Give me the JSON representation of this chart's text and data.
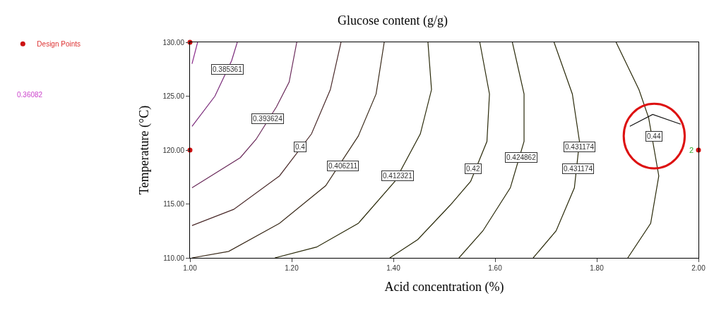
{
  "chart_data": {
    "type": "line",
    "title": "Glucose content (g/g)",
    "xlabel": "Acid concentration (%)",
    "ylabel": "Temperature (°C)",
    "xlim": [
      1,
      2
    ],
    "ylim": [
      110,
      130
    ],
    "xticks": [
      {
        "value": 1,
        "label": "1.00"
      },
      {
        "value": 1.2,
        "label": "1.20"
      },
      {
        "value": 1.4,
        "label": "1.40"
      },
      {
        "value": 1.6,
        "label": "1.60"
      },
      {
        "value": 1.8,
        "label": "1.80"
      },
      {
        "value": 2,
        "label": "2.00"
      }
    ],
    "yticks": [
      {
        "value": 110,
        "label": "110.00"
      },
      {
        "value": 115,
        "label": "115.00"
      },
      {
        "value": 120,
        "label": "120.00"
      },
      {
        "value": 125,
        "label": "125.00"
      },
      {
        "value": 130,
        "label": "130.00"
      }
    ],
    "grid": false,
    "legend": "top left",
    "marker": "none",
    "line_style": "solid",
    "series": [
      {
        "color": "#8a2a8a",
        "x": [
          1.015,
          1.004
        ],
        "values": [
          130,
          128.0
        ]
      },
      {
        "color": "#7a2a7a",
        "x": [
          1.093,
          1.082,
          1.049,
          1.004
        ],
        "values": [
          130,
          128.3,
          125.0,
          122.2
        ]
      },
      {
        "color": "#6a2a5a",
        "x": [
          1.21,
          1.195,
          1.17,
          1.13,
          1.099,
          1.004
        ],
        "values": [
          130,
          126.3,
          124.0,
          121.0,
          119.3,
          116.5
        ]
      },
      {
        "color": "#4a2a2a",
        "x": [
          1.297,
          1.276,
          1.239,
          1.176,
          1.086,
          1.004
        ],
        "values": [
          130,
          125.6,
          121.5,
          117.6,
          114.5,
          113.0
        ]
      },
      {
        "color": "#3a2a1a",
        "x": [
          1.382,
          1.366,
          1.331,
          1.267,
          1.176,
          1.076,
          1.004
        ],
        "values": [
          130,
          125.2,
          121.3,
          116.7,
          113.2,
          110.6,
          110
        ]
      },
      {
        "color": "#2a2a0a",
        "x": [
          1.468,
          1.475,
          1.453,
          1.403,
          1.331,
          1.249,
          1.167
        ],
        "values": [
          130,
          125.6,
          121.5,
          117.1,
          113.2,
          111.0,
          110
        ]
      },
      {
        "color": "#2a2a0a",
        "x": [
          1.57,
          1.589,
          1.584,
          1.552,
          1.512,
          1.448,
          1.393
        ],
        "values": [
          130,
          125.2,
          120.8,
          117.1,
          114.9,
          111.7,
          110
        ]
      },
      {
        "color": "#2a2a0a",
        "x": [
          1.634,
          1.657,
          1.657,
          1.63,
          1.576,
          1.529
        ],
        "values": [
          130,
          125.2,
          120.8,
          116.5,
          112.5,
          110
        ]
      },
      {
        "color": "#2a2a0a",
        "x": [
          1.716,
          1.752,
          1.766,
          1.756,
          1.72,
          1.675
        ],
        "values": [
          130,
          125.2,
          120.8,
          116.5,
          112.5,
          110
        ]
      },
      {
        "color": "#2a2a0a",
        "x": [
          1.838,
          1.883,
          1.902,
          1.922,
          1.906,
          1.861
        ],
        "values": [
          130,
          125.6,
          123.0,
          117.6,
          113.2,
          110
        ]
      },
      {
        "color": "#111111",
        "x": [
          1.865,
          1.91,
          1.965
        ],
        "values": [
          122.2,
          123.3,
          122.4
        ]
      },
      {
        "type": "scatter",
        "name": "Design Points",
        "color": "#cc1111",
        "marker": "circle",
        "x": [
          1,
          1,
          2
        ],
        "values": [
          130,
          120,
          120
        ]
      }
    ],
    "annotations": [
      "0.36082",
      {
        "text": "0.385361",
        "x": 1.073,
        "y": 127.5
      },
      {
        "text": "0.393624",
        "x": 1.153,
        "y": 122.9
      },
      {
        "text": "0.4",
        "x": 1.216,
        "y": 120.3
      },
      {
        "text": "0.406211",
        "x": 1.301,
        "y": 118.5
      },
      {
        "text": "0.412321",
        "x": 1.409,
        "y": 117.6
      },
      {
        "text": "0.42",
        "x": 1.557,
        "y": 118.3
      },
      {
        "text": "0.424862",
        "x": 1.652,
        "y": 119.3
      },
      {
        "text": "0.431174",
        "x": 1.766,
        "y": 120.3
      },
      {
        "text": "0.431174",
        "x": 1.763,
        "y": 118.3
      },
      {
        "text": "0.44",
        "x": 1.913,
        "y": 121.3
      },
      {
        "text": "2",
        "x": 2,
        "y": 120
      }
    ]
  }
}
